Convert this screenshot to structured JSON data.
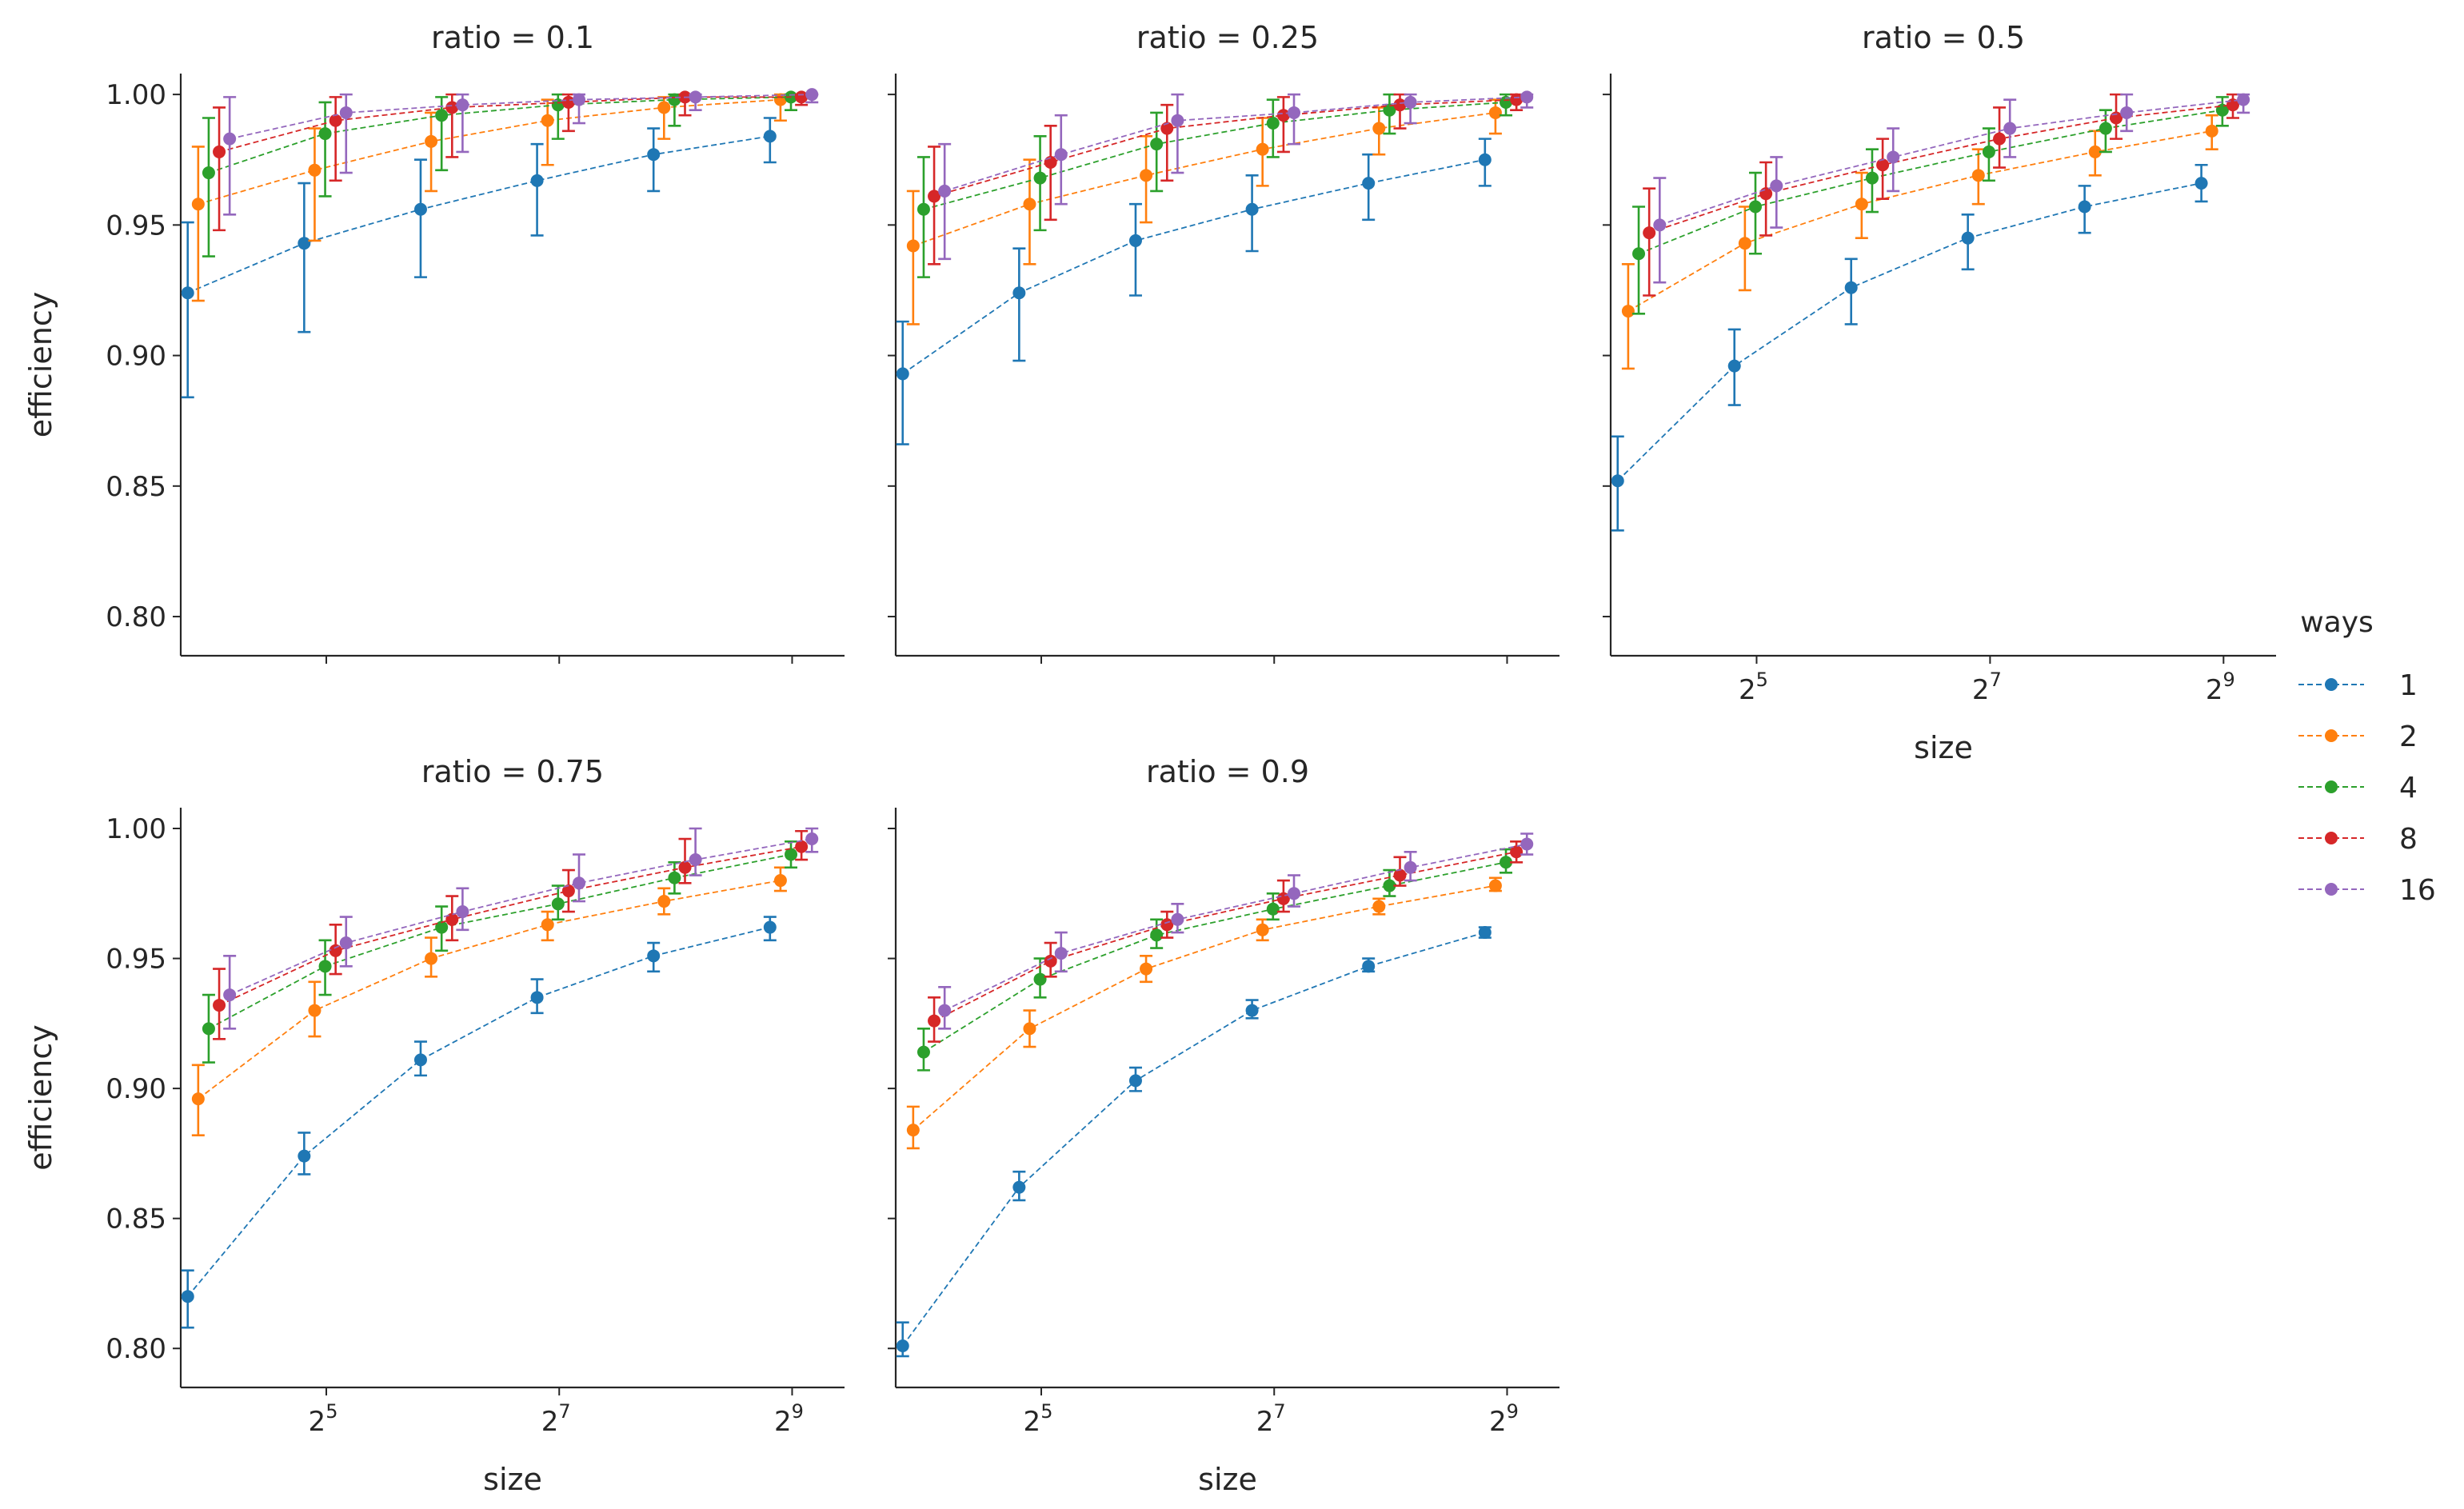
{
  "figure": {
    "legend_title": "ways",
    "xlabel": "size",
    "ylabel": "efficiency",
    "y_ticks": [
      "0.80",
      "0.85",
      "0.90",
      "0.95",
      "1.00"
    ],
    "x_ticks": [
      {
        "base": "2",
        "exp": "5"
      },
      {
        "base": "2",
        "exp": "7"
      },
      {
        "base": "2",
        "exp": "9"
      }
    ]
  },
  "legend": [
    {
      "label": "1",
      "color": "#1f77b4"
    },
    {
      "label": "2",
      "color": "#ff7f0e"
    },
    {
      "label": "4",
      "color": "#2ca02c"
    },
    {
      "label": "8",
      "color": "#d62728"
    },
    {
      "label": "16",
      "color": "#9467bd"
    }
  ],
  "chart_data": [
    {
      "type": "line",
      "title": "ratio = 0.1",
      "xlabel": "",
      "ylabel": "efficiency",
      "xscale": "log2",
      "ylim": [
        0.785,
        1.008
      ],
      "x": [
        16,
        32,
        64,
        128,
        256,
        512
      ],
      "series": [
        {
          "name": "1",
          "color": "#1f77b4",
          "values": [
            0.924,
            0.943,
            0.956,
            0.967,
            0.977,
            0.984
          ],
          "err_low": [
            0.884,
            0.909,
            0.93,
            0.946,
            0.963,
            0.974
          ],
          "err_high": [
            0.951,
            0.966,
            0.975,
            0.981,
            0.987,
            0.991
          ]
        },
        {
          "name": "2",
          "color": "#ff7f0e",
          "values": [
            0.958,
            0.971,
            0.982,
            0.99,
            0.995,
            0.998
          ],
          "err_low": [
            0.921,
            0.944,
            0.963,
            0.973,
            0.983,
            0.99
          ],
          "err_high": [
            0.98,
            0.987,
            0.993,
            0.998,
            0.999,
            1.0
          ]
        },
        {
          "name": "4",
          "color": "#2ca02c",
          "values": [
            0.97,
            0.985,
            0.992,
            0.996,
            0.998,
            0.999
          ],
          "err_low": [
            0.938,
            0.961,
            0.971,
            0.983,
            0.988,
            0.994
          ],
          "err_high": [
            0.991,
            0.997,
            0.999,
            1.0,
            1.0,
            1.0
          ]
        },
        {
          "name": "8",
          "color": "#d62728",
          "values": [
            0.978,
            0.99,
            0.995,
            0.997,
            0.999,
            0.999
          ],
          "err_low": [
            0.948,
            0.967,
            0.976,
            0.986,
            0.992,
            0.996
          ],
          "err_high": [
            0.995,
            0.999,
            1.0,
            1.0,
            1.0,
            1.0
          ]
        },
        {
          "name": "16",
          "color": "#9467bd",
          "values": [
            0.983,
            0.993,
            0.996,
            0.998,
            0.999,
            1.0
          ],
          "err_low": [
            0.954,
            0.97,
            0.978,
            0.989,
            0.994,
            0.997
          ],
          "err_high": [
            0.999,
            1.0,
            1.0,
            1.0,
            1.0,
            1.0
          ]
        }
      ]
    },
    {
      "type": "line",
      "title": "ratio = 0.25",
      "xlabel": "",
      "ylabel": "",
      "xscale": "log2",
      "ylim": [
        0.785,
        1.008
      ],
      "x": [
        16,
        32,
        64,
        128,
        256,
        512
      ],
      "series": [
        {
          "name": "1",
          "color": "#1f77b4",
          "values": [
            0.893,
            0.924,
            0.944,
            0.956,
            0.966,
            0.975
          ],
          "err_low": [
            0.866,
            0.898,
            0.923,
            0.94,
            0.952,
            0.965
          ],
          "err_high": [
            0.913,
            0.941,
            0.958,
            0.969,
            0.977,
            0.983
          ]
        },
        {
          "name": "2",
          "color": "#ff7f0e",
          "values": [
            0.942,
            0.958,
            0.969,
            0.979,
            0.987,
            0.993
          ],
          "err_low": [
            0.912,
            0.935,
            0.951,
            0.965,
            0.977,
            0.985
          ],
          "err_high": [
            0.963,
            0.975,
            0.984,
            0.991,
            0.995,
            0.998
          ]
        },
        {
          "name": "4",
          "color": "#2ca02c",
          "values": [
            0.956,
            0.968,
            0.981,
            0.989,
            0.994,
            0.997
          ],
          "err_low": [
            0.93,
            0.948,
            0.963,
            0.976,
            0.985,
            0.992
          ],
          "err_high": [
            0.976,
            0.984,
            0.993,
            0.998,
            1.0,
            1.0
          ]
        },
        {
          "name": "8",
          "color": "#d62728",
          "values": [
            0.961,
            0.974,
            0.987,
            0.992,
            0.996,
            0.998
          ],
          "err_low": [
            0.935,
            0.952,
            0.967,
            0.978,
            0.987,
            0.994
          ],
          "err_high": [
            0.98,
            0.988,
            0.996,
            0.999,
            1.0,
            1.0
          ]
        },
        {
          "name": "16",
          "color": "#9467bd",
          "values": [
            0.963,
            0.977,
            0.99,
            0.993,
            0.997,
            0.999
          ],
          "err_low": [
            0.937,
            0.958,
            0.97,
            0.981,
            0.989,
            0.995
          ],
          "err_high": [
            0.981,
            0.992,
            1.0,
            1.0,
            1.0,
            1.0
          ]
        }
      ]
    },
    {
      "type": "line",
      "title": "ratio = 0.5",
      "xlabel": "size",
      "ylabel": "",
      "xscale": "log2",
      "ylim": [
        0.785,
        1.008
      ],
      "x": [
        16,
        32,
        64,
        128,
        256,
        512
      ],
      "series": [
        {
          "name": "1",
          "color": "#1f77b4",
          "values": [
            0.852,
            0.896,
            0.926,
            0.945,
            0.957,
            0.966
          ],
          "err_low": [
            0.833,
            0.881,
            0.912,
            0.933,
            0.947,
            0.959
          ],
          "err_high": [
            0.869,
            0.91,
            0.937,
            0.954,
            0.965,
            0.973
          ]
        },
        {
          "name": "2",
          "color": "#ff7f0e",
          "values": [
            0.917,
            0.943,
            0.958,
            0.969,
            0.978,
            0.986
          ],
          "err_low": [
            0.895,
            0.925,
            0.945,
            0.958,
            0.969,
            0.979
          ],
          "err_high": [
            0.935,
            0.957,
            0.97,
            0.979,
            0.986,
            0.992
          ]
        },
        {
          "name": "4",
          "color": "#2ca02c",
          "values": [
            0.939,
            0.957,
            0.968,
            0.978,
            0.987,
            0.994
          ],
          "err_low": [
            0.916,
            0.939,
            0.955,
            0.967,
            0.978,
            0.988
          ],
          "err_high": [
            0.957,
            0.97,
            0.979,
            0.987,
            0.994,
            0.999
          ]
        },
        {
          "name": "8",
          "color": "#d62728",
          "values": [
            0.947,
            0.962,
            0.973,
            0.983,
            0.991,
            0.996
          ],
          "err_low": [
            0.923,
            0.946,
            0.96,
            0.972,
            0.983,
            0.991
          ],
          "err_high": [
            0.964,
            0.974,
            0.983,
            0.995,
            1.0,
            1.0
          ]
        },
        {
          "name": "16",
          "color": "#9467bd",
          "values": [
            0.95,
            0.965,
            0.976,
            0.987,
            0.993,
            0.998
          ],
          "err_low": [
            0.928,
            0.949,
            0.963,
            0.976,
            0.986,
            0.993
          ],
          "err_high": [
            0.968,
            0.976,
            0.987,
            0.998,
            1.0,
            1.0
          ]
        }
      ]
    },
    {
      "type": "line",
      "title": "ratio = 0.75",
      "xlabel": "size",
      "ylabel": "efficiency",
      "xscale": "log2",
      "ylim": [
        0.785,
        1.008
      ],
      "x": [
        16,
        32,
        64,
        128,
        256,
        512
      ],
      "series": [
        {
          "name": "1",
          "color": "#1f77b4",
          "values": [
            0.82,
            0.874,
            0.911,
            0.935,
            0.951,
            0.962
          ],
          "err_low": [
            0.808,
            0.867,
            0.905,
            0.929,
            0.945,
            0.957
          ],
          "err_high": [
            0.83,
            0.883,
            0.918,
            0.942,
            0.956,
            0.966
          ]
        },
        {
          "name": "2",
          "color": "#ff7f0e",
          "values": [
            0.896,
            0.93,
            0.95,
            0.963,
            0.972,
            0.98
          ],
          "err_low": [
            0.882,
            0.92,
            0.943,
            0.957,
            0.967,
            0.976
          ],
          "err_high": [
            0.909,
            0.941,
            0.958,
            0.968,
            0.977,
            0.985
          ]
        },
        {
          "name": "4",
          "color": "#2ca02c",
          "values": [
            0.923,
            0.947,
            0.962,
            0.971,
            0.981,
            0.99
          ],
          "err_low": [
            0.91,
            0.936,
            0.953,
            0.965,
            0.975,
            0.985
          ],
          "err_high": [
            0.936,
            0.957,
            0.97,
            0.978,
            0.987,
            0.995
          ]
        },
        {
          "name": "8",
          "color": "#d62728",
          "values": [
            0.932,
            0.953,
            0.965,
            0.976,
            0.985,
            0.993
          ],
          "err_low": [
            0.919,
            0.944,
            0.957,
            0.968,
            0.979,
            0.988
          ],
          "err_high": [
            0.946,
            0.963,
            0.974,
            0.984,
            0.996,
            0.999
          ]
        },
        {
          "name": "16",
          "color": "#9467bd",
          "values": [
            0.936,
            0.956,
            0.968,
            0.979,
            0.988,
            0.996
          ],
          "err_low": [
            0.923,
            0.947,
            0.961,
            0.972,
            0.982,
            0.991
          ],
          "err_high": [
            0.951,
            0.966,
            0.977,
            0.99,
            1.0,
            1.0
          ]
        }
      ]
    },
    {
      "type": "line",
      "title": "ratio = 0.9",
      "xlabel": "size",
      "ylabel": "",
      "xscale": "log2",
      "ylim": [
        0.785,
        1.008
      ],
      "x": [
        16,
        32,
        64,
        128,
        256,
        512
      ],
      "series": [
        {
          "name": "1",
          "color": "#1f77b4",
          "values": [
            0.801,
            0.862,
            0.903,
            0.93,
            0.947,
            0.96
          ],
          "err_low": [
            0.797,
            0.857,
            0.899,
            0.927,
            0.945,
            0.958
          ],
          "err_high": [
            0.81,
            0.868,
            0.908,
            0.934,
            0.95,
            0.962
          ]
        },
        {
          "name": "2",
          "color": "#ff7f0e",
          "values": [
            0.884,
            0.923,
            0.946,
            0.961,
            0.97,
            0.978
          ],
          "err_low": [
            0.877,
            0.916,
            0.941,
            0.957,
            0.967,
            0.976
          ],
          "err_high": [
            0.893,
            0.93,
            0.951,
            0.965,
            0.973,
            0.981
          ]
        },
        {
          "name": "4",
          "color": "#2ca02c",
          "values": [
            0.914,
            0.942,
            0.959,
            0.969,
            0.978,
            0.987
          ],
          "err_low": [
            0.907,
            0.935,
            0.954,
            0.965,
            0.974,
            0.983
          ],
          "err_high": [
            0.923,
            0.95,
            0.965,
            0.975,
            0.984,
            0.992
          ]
        },
        {
          "name": "8",
          "color": "#d62728",
          "values": [
            0.926,
            0.949,
            0.963,
            0.973,
            0.982,
            0.991
          ],
          "err_low": [
            0.918,
            0.943,
            0.958,
            0.968,
            0.978,
            0.987
          ],
          "err_high": [
            0.935,
            0.956,
            0.968,
            0.98,
            0.989,
            0.995
          ]
        },
        {
          "name": "16",
          "color": "#9467bd",
          "values": [
            0.93,
            0.952,
            0.965,
            0.975,
            0.985,
            0.994
          ],
          "err_low": [
            0.923,
            0.945,
            0.96,
            0.97,
            0.98,
            0.99
          ],
          "err_high": [
            0.939,
            0.96,
            0.971,
            0.982,
            0.991,
            0.998
          ]
        }
      ]
    }
  ]
}
